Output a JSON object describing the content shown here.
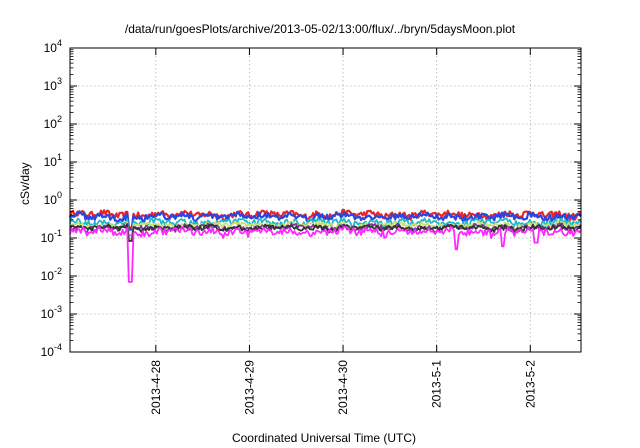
{
  "chart_data": {
    "type": "line",
    "title": "/data/run/goesPlots/archive/2013-05-02/13:00/flux/../bryn/5daysMoon.plot",
    "xlabel": "Coordinated Universal Time (UTC)",
    "ylabel": "cSv/day",
    "yscale": "log",
    "ylim": [
      0.0001,
      10000
    ],
    "y_ticks": [
      {
        "value": 0.0001,
        "base": "10",
        "exp": "-4"
      },
      {
        "value": 0.001,
        "base": "10",
        "exp": "-3"
      },
      {
        "value": 0.01,
        "base": "10",
        "exp": "-2"
      },
      {
        "value": 0.1,
        "base": "10",
        "exp": "-1"
      },
      {
        "value": 1,
        "base": "10",
        "exp": "0"
      },
      {
        "value": 10,
        "base": "10",
        "exp": "1"
      },
      {
        "value": 100,
        "base": "10",
        "exp": "2"
      },
      {
        "value": 1000,
        "base": "10",
        "exp": "3"
      },
      {
        "value": 10000,
        "base": "10",
        "exp": "4"
      }
    ],
    "xlim": [
      "2013-04-27 02:00",
      "2013-05-02 13:00"
    ],
    "x_ticks": [
      "2013-4-28",
      "2013-4-29",
      "2013-4-30",
      "2013-5-1",
      "2013-5-2"
    ],
    "grid": true,
    "series": [
      {
        "color": "#e8262a",
        "level": 0.42,
        "amp": 0.1
      },
      {
        "color": "#2a45e0",
        "level": 0.37,
        "amp": 0.09
      },
      {
        "color": "#20b8c8",
        "level": 0.26,
        "amp": 0.06
      },
      {
        "color": "#c8e070",
        "level": 0.22,
        "amp": 0.04
      },
      {
        "color": "#7a3a9a",
        "level": 0.19,
        "amp": 0.04
      },
      {
        "color": "#333333",
        "level": 0.185,
        "amp": 0.035
      },
      {
        "color": "#ff28ff",
        "level": 0.15,
        "amp": 0.04
      }
    ],
    "dips": [
      {
        "x": "2013-04-27 17:30",
        "value": 0.007
      },
      {
        "x": "2013-05-01 05:00",
        "value": 0.05
      },
      {
        "x": "2013-05-01 17:00",
        "value": 0.06
      },
      {
        "x": "2013-05-02 01:30",
        "value": 0.075
      }
    ]
  }
}
